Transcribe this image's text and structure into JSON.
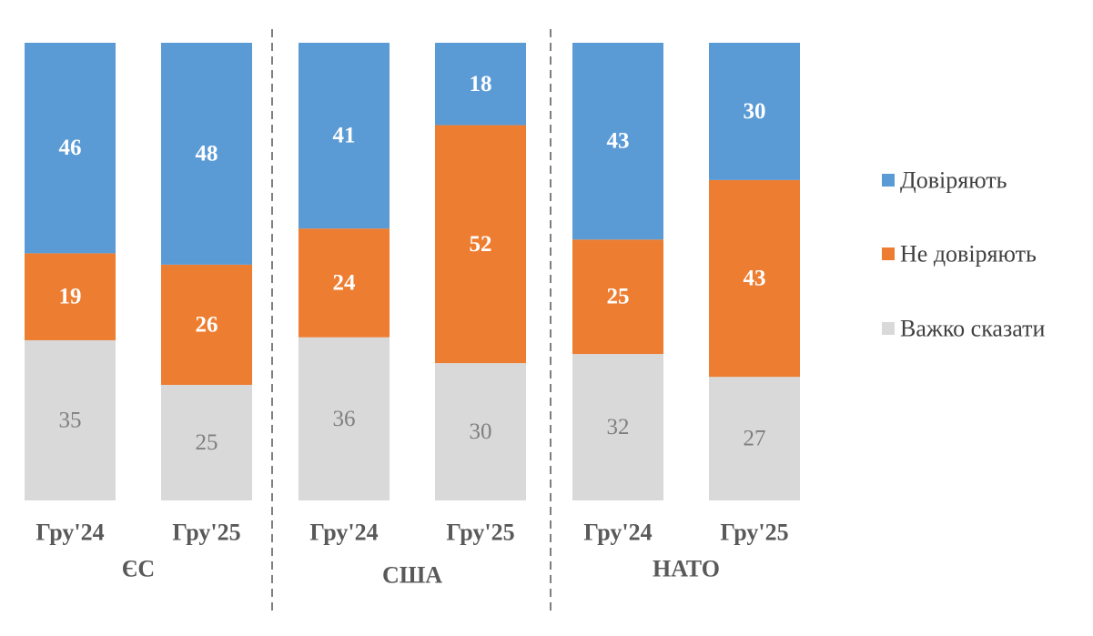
{
  "chart_data": {
    "type": "bar",
    "stacked": true,
    "normalized": true,
    "groups": [
      {
        "name": "ЄС",
        "categories": [
          "Гру'24",
          "Гру'25"
        ]
      },
      {
        "name": "США",
        "categories": [
          "Гру'24",
          "Гру'25"
        ]
      },
      {
        "name": "НАТО",
        "categories": [
          "Гру'24",
          "Гру'25"
        ]
      }
    ],
    "categories": [
      "Гру'24",
      "Гру'25",
      "Гру'24",
      "Гру'25",
      "Гру'24",
      "Гру'25"
    ],
    "series": [
      {
        "name": "Довіряють",
        "color": "#5b9bd5",
        "values": [
          46,
          48,
          41,
          18,
          43,
          30
        ]
      },
      {
        "name": "Не  довіряють",
        "color": "#ed7d31",
        "values": [
          19,
          26,
          24,
          52,
          25,
          43
        ]
      },
      {
        "name": "Важко сказати",
        "color": "#d9d9d9",
        "values": [
          35,
          25,
          36,
          30,
          32,
          27
        ]
      }
    ],
    "stack_order_bottom_to_top": [
      "Важко сказати",
      "Не  довіряють",
      "Довіряють"
    ],
    "legend_position": "right",
    "grid": false,
    "group_separators": "dashed"
  }
}
